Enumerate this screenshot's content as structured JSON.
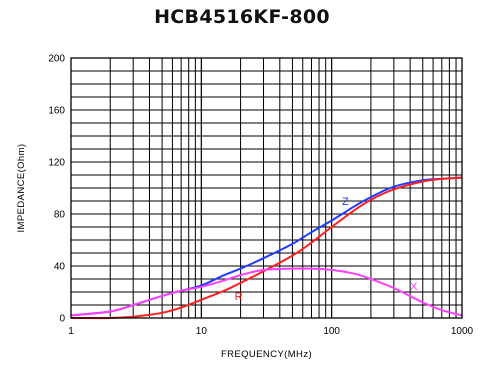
{
  "chart_data": {
    "type": "line",
    "title": "HCB4516KF-800",
    "xlabel": "FREQUENCY(MHz)",
    "ylabel": "IMPEDANCE(Ohm)",
    "x_scale": "log",
    "xlim": [
      1,
      1000
    ],
    "ylim": [
      0,
      200
    ],
    "x_ticks": [
      "1",
      "10",
      "100",
      "1000"
    ],
    "y_ticks": [
      "0",
      "40",
      "80",
      "120",
      "160",
      "200"
    ],
    "grid": true,
    "x": [
      1,
      2,
      3,
      5,
      7,
      10,
      15,
      20,
      30,
      50,
      70,
      100,
      150,
      200,
      300,
      500,
      700,
      1000
    ],
    "series": [
      {
        "name": "Z",
        "color": "#1f3cff",
        "values": [
          2,
          5,
          10,
          17,
          21,
          25,
          33,
          38,
          46,
          57,
          66,
          75,
          86,
          93,
          101,
          106,
          107,
          108
        ]
      },
      {
        "name": "R",
        "color": "#ff2020",
        "values": [
          0,
          0,
          1,
          4,
          8,
          14,
          21,
          27,
          36,
          48,
          58,
          70,
          83,
          91,
          99,
          105,
          107,
          108
        ]
      },
      {
        "name": "X",
        "color": "#ff40ff",
        "values": [
          2,
          5,
          10,
          17,
          21,
          24,
          29,
          33,
          37,
          38,
          38,
          37,
          34,
          30,
          23,
          12,
          6,
          2
        ]
      }
    ]
  }
}
